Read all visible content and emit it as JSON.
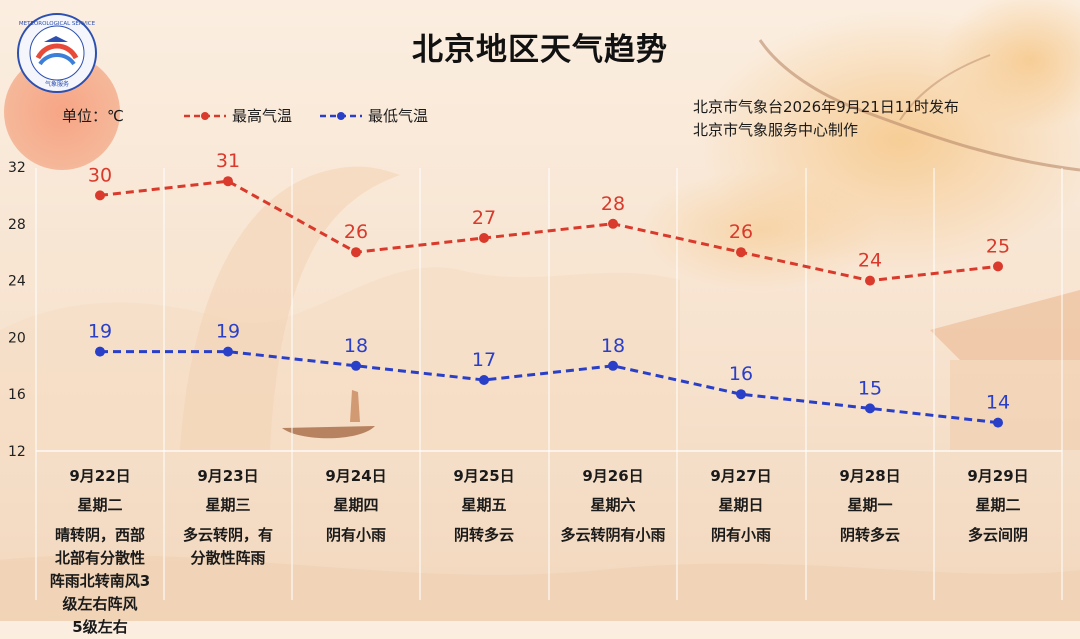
{
  "title": "北京地区天气趋势",
  "logo": {
    "icon": "meteorological-service-logo-icon",
    "text_ring": "METEOROLOGICAL SERVICE",
    "caption": "气象服务"
  },
  "unit_label": "单位：℃",
  "issuer": {
    "line1": "北京市气象台2026年9月21日11时发布",
    "line2": "北京市气象服务中心制作"
  },
  "colors": {
    "high": "#d93a2b",
    "low": "#2a3fc8",
    "grid": "#ffffff"
  },
  "chart_data": {
    "type": "line",
    "categories": [
      "9月22日",
      "9月23日",
      "9月24日",
      "9月25日",
      "9月26日",
      "9月27日",
      "9月28日",
      "9月29日"
    ],
    "series": [
      {
        "name": "最高气温",
        "values": [
          30,
          31,
          26,
          27,
          28,
          26,
          24,
          25
        ]
      },
      {
        "name": "最低气温",
        "values": [
          19,
          19,
          18,
          17,
          18,
          16,
          15,
          14
        ]
      }
    ],
    "yticks": [
      "32",
      "28",
      "24",
      "20",
      "16",
      "12"
    ],
    "ylim": [
      12,
      32
    ],
    "legend_position": "top",
    "grid": true
  },
  "days": [
    {
      "date": "9月22日",
      "weekday": "星期二",
      "weather": "晴转阴，西部北部有分散性阵雨北转南风3级左右阵风5级左右"
    },
    {
      "date": "9月23日",
      "weekday": "星期三",
      "weather": "多云转阴，有分散性阵雨"
    },
    {
      "date": "9月24日",
      "weekday": "星期四",
      "weather": "阴有小雨"
    },
    {
      "date": "9月25日",
      "weekday": "星期五",
      "weather": "阴转多云"
    },
    {
      "date": "9月26日",
      "weekday": "星期六",
      "weather": "多云转阴有小雨"
    },
    {
      "date": "9月27日",
      "weekday": "星期日",
      "weather": "阴有小雨"
    },
    {
      "date": "9月28日",
      "weekday": "星期一",
      "weather": "阴转多云"
    },
    {
      "date": "9月29日",
      "weekday": "星期二",
      "weather": "多云间阴"
    }
  ]
}
